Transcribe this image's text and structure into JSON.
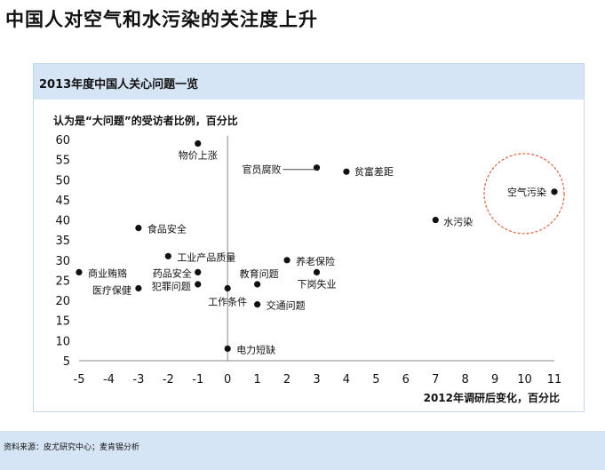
{
  "page_title": "中国人对空气和水污染的关注度上升",
  "panel": {
    "title": "2013年度中国人关心问题一览"
  },
  "footer": {
    "source": "资料来源：皮尤研究中心；麦肯锡分析"
  },
  "colors": {
    "panel_header": "#d6e5f5",
    "point": "#111111",
    "highlight_circle": "#e0603c",
    "axis": "#888888"
  },
  "chart_data": {
    "type": "scatter",
    "title": "",
    "ylabel": "认为是“大问题”的受访者比例，百分比",
    "xlabel": "2012年调研后变化，百分比",
    "xlim": [
      -5,
      11
    ],
    "ylim": [
      5,
      60
    ],
    "xticks": [
      -5,
      -4,
      -3,
      -2,
      -1,
      0,
      1,
      2,
      3,
      4,
      5,
      6,
      7,
      8,
      9,
      10,
      11
    ],
    "yticks": [
      5,
      10,
      15,
      20,
      25,
      30,
      35,
      40,
      45,
      50,
      55,
      60
    ],
    "grid": false,
    "highlight": "空气污染",
    "points": [
      {
        "label": "物价上涨",
        "x": -1,
        "y": 59
      },
      {
        "label": "官员腐败",
        "x": 3,
        "y": 53
      },
      {
        "label": "贫富差距",
        "x": 4,
        "y": 52
      },
      {
        "label": "空气污染",
        "x": 11,
        "y": 47
      },
      {
        "label": "水污染",
        "x": 7,
        "y": 40
      },
      {
        "label": "食品安全",
        "x": -3,
        "y": 38
      },
      {
        "label": "工业产品质量",
        "x": -2,
        "y": 31
      },
      {
        "label": "养老保险",
        "x": 2,
        "y": 30
      },
      {
        "label": "商业贿赂",
        "x": -5,
        "y": 27
      },
      {
        "label": "药品安全",
        "x": -1,
        "y": 27
      },
      {
        "label": "教育问题",
        "x": 1,
        "y": 24
      },
      {
        "label": "下岗失业",
        "x": 3,
        "y": 27
      },
      {
        "label": "医疗保健",
        "x": -3,
        "y": 23
      },
      {
        "label": "犯罪问题",
        "x": -1,
        "y": 24
      },
      {
        "label": "工作条件",
        "x": 0,
        "y": 23
      },
      {
        "label": "交通问题",
        "x": 1,
        "y": 19
      },
      {
        "label": "电力短缺",
        "x": 0,
        "y": 8
      }
    ]
  }
}
